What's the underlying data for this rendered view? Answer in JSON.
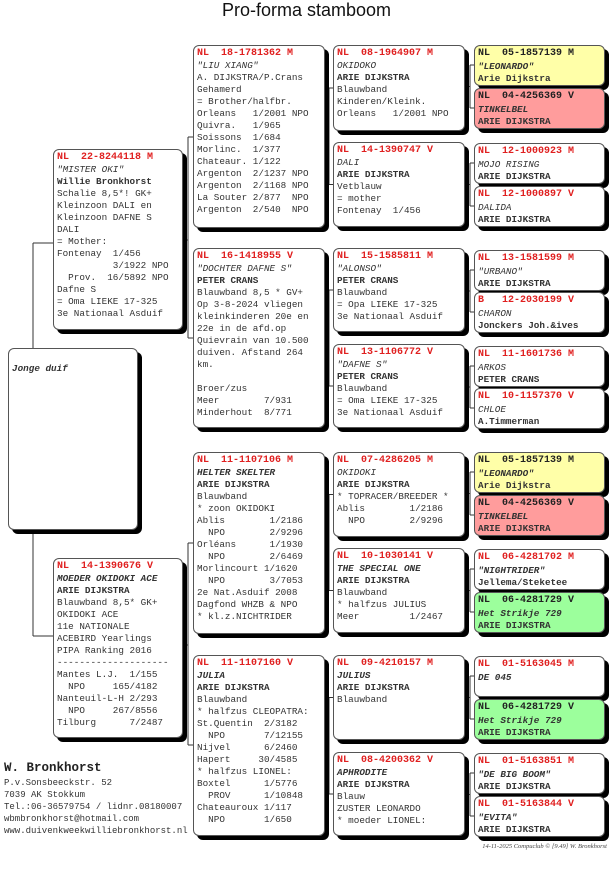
{
  "title": "Pro-forma stamboom",
  "colors": {
    "header_red": "#e02020",
    "yellow": "#ffffa8",
    "red": "#ff9c9c",
    "green": "#9cff9c"
  },
  "boxes": [
    {
      "id": "youngster",
      "header": "",
      "lines": [
        {
          "t": "Jonge duif",
          "s": "bi"
        }
      ]
    },
    {
      "id": "sire",
      "header": "NL  22-8244118 M",
      "lines": [
        {
          "t": "\"MISTER OKI\"",
          "s": "i"
        },
        {
          "t": "Willie Bronkhorst",
          "s": "b"
        },
        {
          "t": "Schalie 8,5*! GK+"
        },
        {
          "t": "Kleinzoon DALI en"
        },
        {
          "t": "Kleinzoon DAFNE S"
        },
        {
          "t": "DALI"
        },
        {
          "t": "= Mother:"
        },
        {
          "t": "Fontenay  1/456"
        },
        {
          "t": "          3/1922 NPO"
        },
        {
          "t": "  Prov.  16/5892 NPO"
        },
        {
          "t": "Dafne S"
        },
        {
          "t": "= Oma LIEKE 17-325"
        },
        {
          "t": "3e Nationaal Asduif"
        }
      ]
    },
    {
      "id": "dam",
      "header": "NL  14-1390676 V",
      "lines": [
        {
          "t": "MOEDER OKIDOKI ACE",
          "s": "bi"
        },
        {
          "t": "ARIE DIJKSTRA",
          "s": "b"
        },
        {
          "t": "Blauwband 8,5* GK+"
        },
        {
          "t": "OKIDOKI ACE"
        },
        {
          "t": "11e NATIONALE"
        },
        {
          "t": "ACEBIRD Yearlings"
        },
        {
          "t": "PIPA Ranking 2016"
        },
        {
          "t": "--------------------"
        },
        {
          "t": "Mantes L.J.  1/155"
        },
        {
          "t": "  NPO     165/4182"
        },
        {
          "t": "Nanteuil-L-H 2/293"
        },
        {
          "t": "  NPO     267/8556"
        },
        {
          "t": "Tilburg      7/2487"
        }
      ]
    },
    {
      "id": "ss",
      "header": "NL  18-1781362 M",
      "lines": [
        {
          "t": "\"LIU XIANG\"",
          "s": "i"
        },
        {
          "t": "A. DIJKSTRA/P.Crans"
        },
        {
          "t": "Gehamerd"
        },
        {
          "t": "= Brother/halfbr."
        },
        {
          "t": "Orleans   1/2001 NPO"
        },
        {
          "t": "Quivra.   1/965"
        },
        {
          "t": "Soissons  1/684"
        },
        {
          "t": "Morlinc.  1/377"
        },
        {
          "t": "Chateaur. 1/122"
        },
        {
          "t": "Argenton  2/1237 NPO"
        },
        {
          "t": "Argenton  2/1168 NPO"
        },
        {
          "t": "La Souter 2/877  NPO"
        },
        {
          "t": "Argenton  2/540  NPO"
        }
      ]
    },
    {
      "id": "sd",
      "header": "NL  16-1418955 V",
      "lines": [
        {
          "t": "\"DOCHTER DAFNE S\"",
          "s": "i"
        },
        {
          "t": "PETER CRANS",
          "s": "b"
        },
        {
          "t": "Blauwband 8,5 * GV+"
        },
        {
          "t": "Op 3-8-2024 vliegen"
        },
        {
          "t": "kleinkinderen 20e en"
        },
        {
          "t": "22e in de afd.op"
        },
        {
          "t": "Quievrain van 10.500"
        },
        {
          "t": "duiven. Afstand 264"
        },
        {
          "t": "km."
        },
        {
          "t": ""
        },
        {
          "t": "Broer/zus"
        },
        {
          "t": "Meer        7/931"
        },
        {
          "t": "Minderhout  8/771"
        }
      ]
    },
    {
      "id": "ds",
      "header": "NL  11-1107106 M",
      "lines": [
        {
          "t": "HELTER SKELTER",
          "s": "bi"
        },
        {
          "t": "ARIE DIJKSTRA",
          "s": "b"
        },
        {
          "t": "Blauwband"
        },
        {
          "t": "* zoon OKIDOKI"
        },
        {
          "t": "Ablis        1/2186"
        },
        {
          "t": "  NPO        2/9296"
        },
        {
          "t": "Orléans      1/1930"
        },
        {
          "t": "  NPO        2/6469"
        },
        {
          "t": "Morlincourt 1/1620"
        },
        {
          "t": "  NPO        3/7053"
        },
        {
          "t": "2e Nat.Asduif 2008"
        },
        {
          "t": "Dagfond WHZB & NPO"
        },
        {
          "t": "* kl.z.NICHTRIDER"
        }
      ]
    },
    {
      "id": "dd",
      "header": "NL  11-1107160 V",
      "lines": [
        {
          "t": "JULIA",
          "s": "bi"
        },
        {
          "t": "ARIE DIJKSTRA",
          "s": "b"
        },
        {
          "t": "Blauwband"
        },
        {
          "t": "* halfzus CLEOPATRA:"
        },
        {
          "t": "St.Quentin  2/3182"
        },
        {
          "t": "  NPO       7/12155"
        },
        {
          "t": "Nijvel      6/2460"
        },
        {
          "t": "Hapert     30/4585"
        },
        {
          "t": "* halfzus LIONEL:"
        },
        {
          "t": "Boxtel      1/5776"
        },
        {
          "t": "  PROV      1/10848"
        },
        {
          "t": "Chateauroux 1/117"
        },
        {
          "t": "  NPO       1/650"
        }
      ]
    },
    {
      "id": "sss",
      "header": "NL  08-1964907 M",
      "lines": [
        {
          "t": "OKIDOKO",
          "s": "i"
        },
        {
          "t": "ARIE DIJKSTRA",
          "s": "b"
        },
        {
          "t": "Blauwband"
        },
        {
          "t": "Kinderen/Kleink."
        },
        {
          "t": "Orleans   1/2001 NPO"
        }
      ]
    },
    {
      "id": "ssd",
      "header": "NL  14-1390747 V",
      "lines": [
        {
          "t": "DALI",
          "s": "i"
        },
        {
          "t": "ARIE DIJKSTRA",
          "s": "b"
        },
        {
          "t": "Vetblauw"
        },
        {
          "t": "= mother"
        },
        {
          "t": "Fontenay  1/456"
        }
      ]
    },
    {
      "id": "sds",
      "header": "NL  15-1585811 M",
      "lines": [
        {
          "t": "\"ALONSO\"",
          "s": "i"
        },
        {
          "t": "PETER CRANS",
          "s": "b"
        },
        {
          "t": "Blauwband"
        },
        {
          "t": "= Opa LIEKE 17-325"
        },
        {
          "t": "3e Nationaal Asduif"
        }
      ]
    },
    {
      "id": "sdd",
      "header": "NL  13-1106772 V",
      "lines": [
        {
          "t": "\"DAFNE S\"",
          "s": "i"
        },
        {
          "t": "PETER CRANS",
          "s": "b"
        },
        {
          "t": "Blauwband"
        },
        {
          "t": "= Oma LIEKE 17-325"
        },
        {
          "t": "3e Nationaal Asduif"
        }
      ]
    },
    {
      "id": "dss",
      "header": "NL  07-4286205 M",
      "lines": [
        {
          "t": "OKIDOKI",
          "s": "i"
        },
        {
          "t": "ARIE DIJKSTRA",
          "s": "b"
        },
        {
          "t": "* TOPRACER/BREEDER *"
        },
        {
          "t": "Ablis        1/2186"
        },
        {
          "t": "  NPO        2/9296"
        }
      ]
    },
    {
      "id": "dsd",
      "header": "NL  10-1030141 V",
      "lines": [
        {
          "t": "THE SPECIAL ONE",
          "s": "bi"
        },
        {
          "t": "ARIE DIJKSTRA",
          "s": "b"
        },
        {
          "t": "Blauwband"
        },
        {
          "t": "* halfzus JULIUS"
        },
        {
          "t": "Meer         1/2467"
        }
      ]
    },
    {
      "id": "dds",
      "header": "NL  09-4210157 M",
      "lines": [
        {
          "t": "JULIUS",
          "s": "bi"
        },
        {
          "t": "ARIE DIJKSTRA",
          "s": "b"
        },
        {
          "t": "Blauwband"
        }
      ]
    },
    {
      "id": "ddd",
      "header": "NL  08-4200362 V",
      "lines": [
        {
          "t": "APHRODITE",
          "s": "bi"
        },
        {
          "t": "ARIE DIJKSTRA",
          "s": "b"
        },
        {
          "t": "Blauw"
        },
        {
          "t": "ZUSTER LEONARDO"
        },
        {
          "t": "* moeder LIONEL:"
        }
      ]
    },
    {
      "id": "g4-1",
      "color": "yellow",
      "header": "NL  05-1857139 M",
      "lines": [
        {
          "t": "\"LEONARDO\"",
          "s": "bi"
        },
        {
          "t": "Arie Dijkstra",
          "s": "b"
        }
      ]
    },
    {
      "id": "g4-2",
      "color": "red",
      "header": "NL  04-4256369 V",
      "lines": [
        {
          "t": "TINKELBEL",
          "s": "bi"
        },
        {
          "t": "ARIE DIJKSTRA",
          "s": "b"
        }
      ]
    },
    {
      "id": "g4-3",
      "header": "NL  12-1000923 M",
      "lines": [
        {
          "t": "MOJO RISING",
          "s": "i"
        },
        {
          "t": "ARIE DIJKSTRA",
          "s": "b"
        }
      ]
    },
    {
      "id": "g4-4",
      "header": "NL  12-1000897 V",
      "lines": [
        {
          "t": "DALIDA",
          "s": "i"
        },
        {
          "t": "ARIE DIJKSTRA",
          "s": "b"
        }
      ]
    },
    {
      "id": "g4-5",
      "header": "NL  13-1581599 M",
      "lines": [
        {
          "t": "\"URBANO\"",
          "s": "i"
        },
        {
          "t": "ARIE DIJKSTRA",
          "s": "b"
        }
      ]
    },
    {
      "id": "g4-6",
      "header": "B   12-2030199 V",
      "lines": [
        {
          "t": "CHARON",
          "s": "i"
        },
        {
          "t": "Jonckers Joh.&ives",
          "s": "b"
        }
      ]
    },
    {
      "id": "g4-7",
      "header": "NL  11-1601736 M",
      "lines": [
        {
          "t": "ARKOS",
          "s": "i"
        },
        {
          "t": "PETER CRANS",
          "s": "b"
        }
      ]
    },
    {
      "id": "g4-8",
      "header": "NL  10-1157370 V",
      "lines": [
        {
          "t": "CHLOE",
          "s": "i"
        },
        {
          "t": "A.Timmerman",
          "s": "b"
        }
      ]
    },
    {
      "id": "g4-9",
      "color": "yellow",
      "header": "NL  05-1857139 M",
      "lines": [
        {
          "t": "\"LEONARDO\"",
          "s": "bi"
        },
        {
          "t": "Arie Dijkstra",
          "s": "b"
        }
      ]
    },
    {
      "id": "g4-10",
      "color": "red",
      "header": "NL  04-4256369 V",
      "lines": [
        {
          "t": "TINKELBEL",
          "s": "bi"
        },
        {
          "t": "ARIE DIJKSTRA",
          "s": "b"
        }
      ]
    },
    {
      "id": "g4-11",
      "header": "NL  06-4281702 M",
      "lines": [
        {
          "t": "\"NIGHTRIDER\"",
          "s": "bi"
        },
        {
          "t": "Jellema/Steketee",
          "s": "b"
        }
      ]
    },
    {
      "id": "g4-12",
      "color": "green",
      "header": "NL  06-4281729 V",
      "lines": [
        {
          "t": "Het Strikje 729",
          "s": "bi"
        },
        {
          "t": "ARIE DIJKSTRA",
          "s": "b"
        }
      ]
    },
    {
      "id": "g4-13",
      "header": "NL  01-5163045 M",
      "lines": [
        {
          "t": "DE 045",
          "s": "bi"
        }
      ]
    },
    {
      "id": "g4-14",
      "color": "green",
      "header": "NL  06-4281729 V",
      "lines": [
        {
          "t": "Het Strikje 729",
          "s": "bi"
        },
        {
          "t": "ARIE DIJKSTRA",
          "s": "b"
        }
      ]
    },
    {
      "id": "g4-15",
      "header": "NL  01-5163851 M",
      "lines": [
        {
          "t": "\"DE BIG BOOM\"",
          "s": "bi"
        },
        {
          "t": "ARIE DIJKSTRA",
          "s": "b"
        }
      ]
    },
    {
      "id": "g4-16",
      "header": "NL  01-5163844 V",
      "lines": [
        {
          "t": "\"EVITA\"",
          "s": "bi"
        },
        {
          "t": "ARIE DIJKSTRA",
          "s": "b"
        }
      ]
    }
  ],
  "owner": {
    "name": "W. Bronkhorst",
    "address": "P.v.Sonsbeeckstr. 52",
    "city": "7039 AK  Stokkum",
    "phone": "Tel.:06-36579754 / lidnr.08180007",
    "email": "wbmbronkhorst@hotmail.com",
    "website": "www.duivenkweekwilliebronkhorst.nl"
  },
  "footer": "14-11-2025   Compuclub © [9.49]  W. Bronkhorst"
}
